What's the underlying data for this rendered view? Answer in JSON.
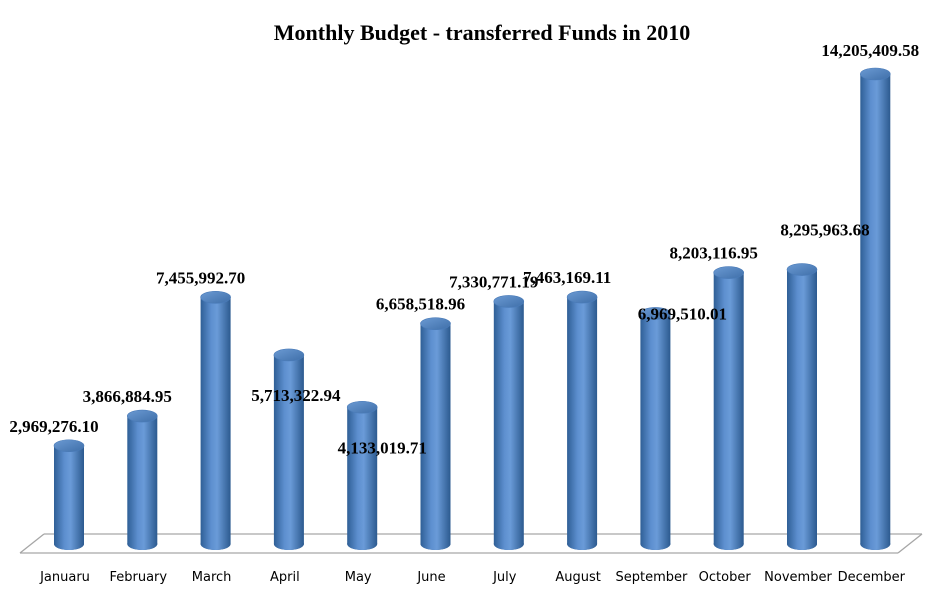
{
  "chart_data": {
    "type": "bar",
    "style": "3d-cylinder",
    "title": "Monthly Budget - transferred Funds in 2010",
    "xlabel": "",
    "ylabel": "",
    "categories": [
      "Januaru",
      "February",
      "March",
      "April",
      "May",
      "June",
      "July",
      "August",
      "September",
      "October",
      "November",
      "December"
    ],
    "values": [
      2969276.1,
      3866884.95,
      7455992.7,
      5713322.94,
      4133019.71,
      6658518.96,
      7330771.19,
      7463169.11,
      6969510.01,
      8203116.95,
      8295963.68,
      14205409.58
    ],
    "data_labels": [
      "2,969,276.10",
      "3,866,884.95",
      "7,455,992.70",
      "5,713,322.94",
      "4,133,019.71",
      "6,658,518.96",
      "7,330,771.19",
      "7,463,169.11",
      "6,969,510.01",
      "8,203,116.95",
      "8,295,963.68",
      "14,205,409.58"
    ],
    "ylim": [
      0,
      15500000
    ],
    "grid": false,
    "legend": "none",
    "y_axis_visible": false,
    "colors": {
      "bar": "#4f81bd",
      "bar_dark": "#2c5a8f",
      "bar_light": "#6f9fd8",
      "bar_top": "#5a8cc8",
      "floor": "#a6a6a6"
    }
  }
}
